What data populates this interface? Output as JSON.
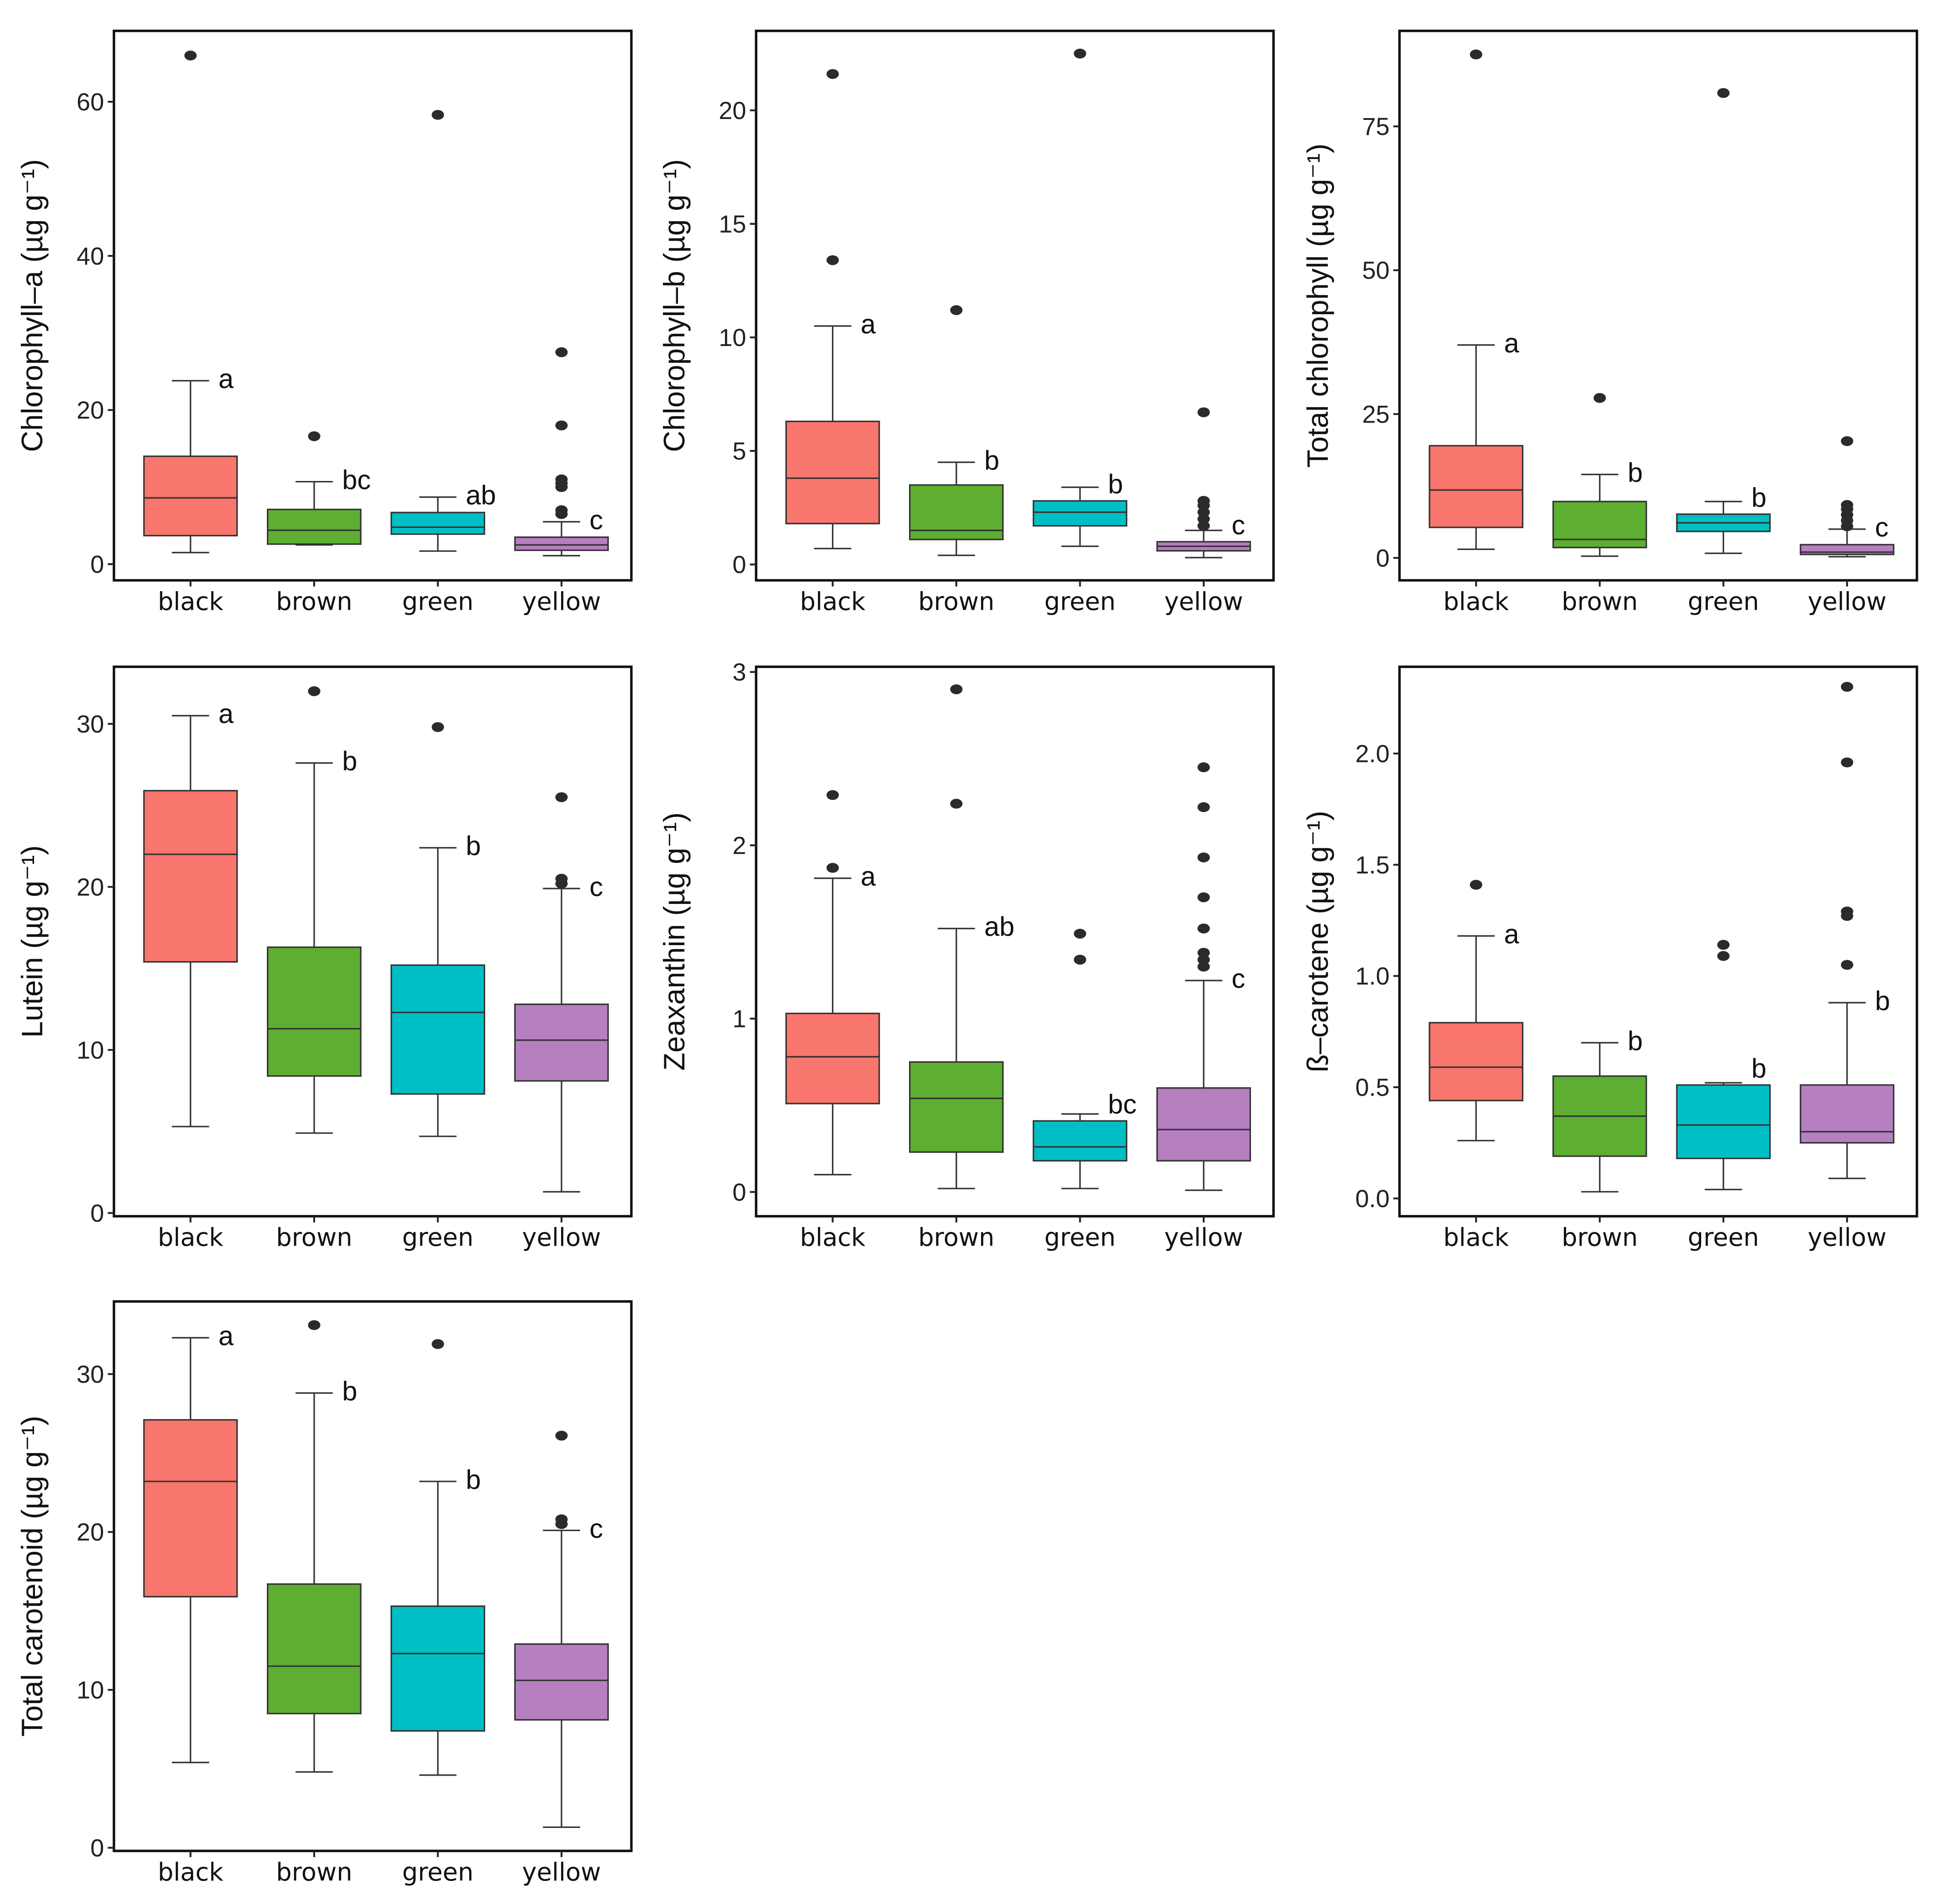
{
  "chart_data": [
    {
      "type": "box",
      "ylabel": "Chlorophyll–a (µg g⁻¹)",
      "ylim": [
        -2.1,
        69.2
      ],
      "yticks": [
        0,
        20,
        40,
        60
      ],
      "categories": [
        "black",
        "brown",
        "green",
        "yellow"
      ],
      "boxes": [
        {
          "low": 1.5,
          "q1": 3.7,
          "median": 8.6,
          "q3": 14,
          "high": 23.8,
          "outliers": [
            66
          ],
          "letter": "a"
        },
        {
          "low": 2.5,
          "q1": 2.6,
          "median": 4.4,
          "q3": 7.1,
          "high": 10.7,
          "outliers": [
            16.6
          ],
          "letter": "bc"
        },
        {
          "low": 1.7,
          "q1": 3.9,
          "median": 4.8,
          "q3": 6.7,
          "high": 8.7,
          "outliers": [
            58.3
          ],
          "letter": "ab"
        },
        {
          "low": 1.1,
          "q1": 1.8,
          "median": 2.5,
          "q3": 3.5,
          "high": 5.5,
          "outliers": [
            6.5,
            7,
            10,
            10.5,
            11,
            18,
            27.5
          ],
          "letter": "c"
        }
      ]
    },
    {
      "type": "box",
      "ylabel": "Chlorophyll–b (µg g⁻¹)",
      "ylim": [
        -0.7,
        23.5
      ],
      "yticks": [
        0,
        5,
        10,
        15,
        20
      ],
      "categories": [
        "black",
        "brown",
        "green",
        "yellow"
      ],
      "boxes": [
        {
          "low": 0.7,
          "q1": 1.8,
          "median": 3.8,
          "q3": 6.3,
          "high": 10.5,
          "outliers": [
            13.4,
            21.6
          ],
          "letter": "a"
        },
        {
          "low": 0.4,
          "q1": 1.1,
          "median": 1.5,
          "q3": 3.5,
          "high": 4.5,
          "outliers": [
            11.2
          ],
          "letter": "b"
        },
        {
          "low": 0.8,
          "q1": 1.7,
          "median": 2.3,
          "q3": 2.8,
          "high": 3.4,
          "outliers": [
            22.5
          ],
          "letter": "b"
        },
        {
          "low": 0.3,
          "q1": 0.6,
          "median": 0.8,
          "q3": 1.0,
          "high": 1.5,
          "outliers": [
            1.7,
            2,
            2.3,
            2.6,
            2.8,
            6.7
          ],
          "letter": "c"
        }
      ]
    },
    {
      "type": "box",
      "ylabel": "Total chlorophyll (µg g⁻¹)",
      "ylim": [
        -3.9,
        91.6
      ],
      "yticks": [
        0,
        25,
        50,
        75
      ],
      "categories": [
        "black",
        "brown",
        "green",
        "yellow"
      ],
      "boxes": [
        {
          "low": 1.5,
          "q1": 5.3,
          "median": 11.8,
          "q3": 19.5,
          "high": 37,
          "outliers": [
            87.5
          ],
          "letter": "a"
        },
        {
          "low": 0.3,
          "q1": 1.8,
          "median": 3.2,
          "q3": 9.8,
          "high": 14.5,
          "outliers": [
            27.8
          ],
          "letter": "b"
        },
        {
          "low": 0.8,
          "q1": 4.6,
          "median": 6.1,
          "q3": 7.6,
          "high": 9.8,
          "outliers": [
            80.8
          ],
          "letter": "b"
        },
        {
          "low": 0.2,
          "q1": 0.6,
          "median": 1.0,
          "q3": 2.3,
          "high": 5,
          "outliers": [
            5.5,
            6.5,
            7.5,
            8.5,
            9.2,
            20.3
          ],
          "letter": "c"
        }
      ]
    },
    {
      "type": "box",
      "ylabel": "Lutein (µg g⁻¹)",
      "ylim": [
        -0.2,
        33.5
      ],
      "yticks": [
        0,
        10,
        20,
        30
      ],
      "categories": [
        "black",
        "brown",
        "green",
        "yellow"
      ],
      "boxes": [
        {
          "low": 5.3,
          "q1": 15.4,
          "median": 22,
          "q3": 25.9,
          "high": 30.5,
          "outliers": [],
          "letter": "a"
        },
        {
          "low": 4.9,
          "q1": 8.4,
          "median": 11.3,
          "q3": 16.3,
          "high": 27.6,
          "outliers": [
            32
          ],
          "letter": "b"
        },
        {
          "low": 4.7,
          "q1": 7.3,
          "median": 12.3,
          "q3": 15.2,
          "high": 22.4,
          "outliers": [
            29.8
          ],
          "letter": "b"
        },
        {
          "low": 1.3,
          "q1": 8.1,
          "median": 10.6,
          "q3": 12.8,
          "high": 19.9,
          "outliers": [
            20.2,
            20.5,
            25.5
          ],
          "letter": "c"
        }
      ]
    },
    {
      "type": "box",
      "ylabel": "Zeaxanthin (µg g⁻¹)",
      "ylim": [
        -0.14,
        3.03
      ],
      "yticks": [
        0,
        1,
        2,
        3
      ],
      "categories": [
        "black",
        "brown",
        "green",
        "yellow"
      ],
      "boxes": [
        {
          "low": 0.1,
          "q1": 0.51,
          "median": 0.78,
          "q3": 1.03,
          "high": 1.81,
          "outliers": [
            1.87,
            2.29
          ],
          "letter": "a"
        },
        {
          "low": 0.02,
          "q1": 0.23,
          "median": 0.54,
          "q3": 0.75,
          "high": 1.52,
          "outliers": [
            2.24,
            2.9
          ],
          "letter": "ab"
        },
        {
          "low": 0.02,
          "q1": 0.18,
          "median": 0.26,
          "q3": 0.41,
          "high": 0.45,
          "outliers": [
            1.34,
            1.49
          ],
          "letter": "bc"
        },
        {
          "low": 0.01,
          "q1": 0.18,
          "median": 0.36,
          "q3": 0.6,
          "high": 1.22,
          "outliers": [
            1.3,
            1.34,
            1.38,
            1.52,
            1.7,
            1.93,
            2.22,
            2.45
          ],
          "letter": "c"
        }
      ]
    },
    {
      "type": "box",
      "ylabel": "ß–carotene (µg g⁻¹)",
      "ylim": [
        -0.08,
        2.39
      ],
      "yticks": [
        "0.0",
        "0.5",
        "1.0",
        "1.5",
        "2.0"
      ],
      "categories": [
        "black",
        "brown",
        "green",
        "yellow"
      ],
      "boxes": [
        {
          "low": 0.26,
          "q1": 0.44,
          "median": 0.59,
          "q3": 0.79,
          "high": 1.18,
          "outliers": [
            1.41
          ],
          "letter": "a"
        },
        {
          "low": 0.03,
          "q1": 0.19,
          "median": 0.37,
          "q3": 0.55,
          "high": 0.7,
          "outliers": [],
          "letter": "b"
        },
        {
          "low": 0.04,
          "q1": 0.18,
          "median": 0.33,
          "q3": 0.51,
          "high": 0.52,
          "outliers": [
            1.09,
            1.14
          ],
          "letter": "b"
        },
        {
          "low": 0.09,
          "q1": 0.25,
          "median": 0.3,
          "q3": 0.51,
          "high": 0.88,
          "outliers": [
            1.05,
            1.27,
            1.29,
            1.96,
            2.3
          ],
          "letter": "b"
        }
      ]
    },
    {
      "type": "box",
      "ylabel": "Total carotenoid (µg g⁻¹)",
      "ylim": [
        -0.2,
        34.6
      ],
      "yticks": [
        0,
        10,
        20,
        30
      ],
      "categories": [
        "black",
        "brown",
        "green",
        "yellow"
      ],
      "boxes": [
        {
          "low": 5.4,
          "q1": 15.9,
          "median": 23.2,
          "q3": 27.1,
          "high": 32.3,
          "outliers": [],
          "letter": "a"
        },
        {
          "low": 4.8,
          "q1": 8.5,
          "median": 11.5,
          "q3": 16.7,
          "high": 28.8,
          "outliers": [
            33.1
          ],
          "letter": "b"
        },
        {
          "low": 4.6,
          "q1": 7.4,
          "median": 12.3,
          "q3": 15.3,
          "high": 23.2,
          "outliers": [
            31.9
          ],
          "letter": "b"
        },
        {
          "low": 1.3,
          "q1": 8.1,
          "median": 10.6,
          "q3": 12.9,
          "high": 20.1,
          "outliers": [
            20.5,
            20.8,
            26.1
          ],
          "letter": "c"
        }
      ]
    }
  ],
  "colors": {
    "black": "#F8766D",
    "brown": "#5DAE31",
    "green": "#00BFC4",
    "yellow": "#B57FC0"
  }
}
